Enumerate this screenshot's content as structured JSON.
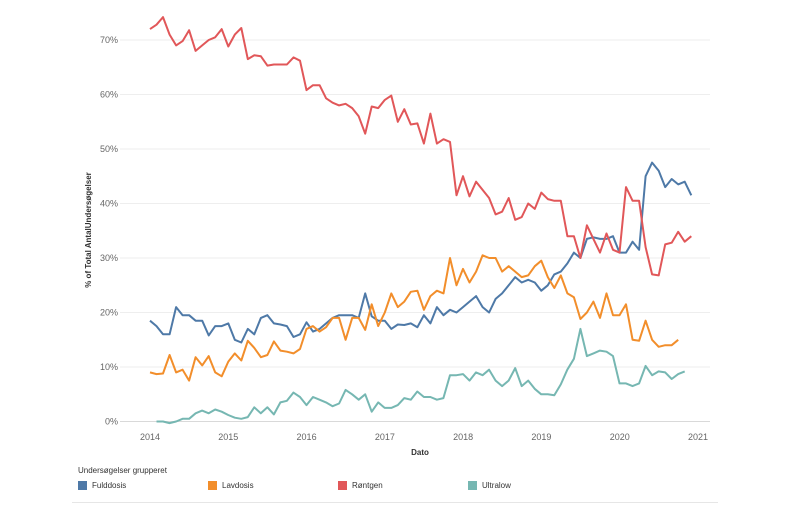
{
  "chart_data": {
    "type": "line",
    "title": "",
    "xlabel": "Dato",
    "ylabel": "% of Total AntalUndersøgelser",
    "xlim": [
      2014,
      2021
    ],
    "ylim": [
      0,
      74
    ],
    "x_ticks": [
      "2014",
      "2015",
      "2016",
      "2017",
      "2018",
      "2019",
      "2020",
      "2021"
    ],
    "y_ticks": [
      "0%",
      "10%",
      "20%",
      "30%",
      "40%",
      "50%",
      "60%",
      "70%"
    ],
    "y_tick_values": [
      0,
      10,
      20,
      30,
      40,
      50,
      60,
      70
    ],
    "grid": "horizontal",
    "legend_title": "Undersøgelser grupperet",
    "legend_position": "bottom",
    "series": [
      {
        "name": "Fulddosis",
        "color": "#4e79a7",
        "start_year": 2014,
        "step": 0.0833,
        "values": [
          18.5,
          17.5,
          16,
          16,
          21,
          19.5,
          19.5,
          18.5,
          18.5,
          15.8,
          17.5,
          17.5,
          18,
          15,
          14.5,
          17,
          16,
          19,
          19.5,
          18,
          17.8,
          17.5,
          15.5,
          16,
          18.2,
          16.5,
          17,
          18,
          19,
          19.5,
          19.5,
          19.5,
          19,
          23.5,
          19.3,
          18.5,
          18.5,
          17,
          17.8,
          17.7,
          18,
          17.3,
          19.5,
          18,
          21,
          19.5,
          20.5,
          20,
          21,
          22,
          23,
          21,
          20,
          22.5,
          23.5,
          25,
          26.5,
          25.5,
          26,
          25.5,
          24,
          25,
          27,
          27.5,
          29,
          31,
          30,
          33.5,
          33.8,
          33.5,
          33.5,
          34,
          31,
          31,
          33,
          31.5,
          45,
          47.5,
          46,
          43,
          44.5,
          43.5,
          44,
          41.5
        ]
      },
      {
        "name": "Lavdosis",
        "color": "#f28e2b",
        "start_year": 2014,
        "step": 0.0833,
        "values": [
          9,
          8.7,
          8.8,
          12.2,
          9,
          9.5,
          7.5,
          11.8,
          10.3,
          12,
          9,
          8.3,
          11,
          12.5,
          11.2,
          14.8,
          13.5,
          11.8,
          12.2,
          14.7,
          13,
          12.8,
          12.5,
          13.3,
          17,
          17.5,
          16.5,
          17.3,
          19,
          19,
          15,
          19,
          19,
          16.8,
          21.5,
          17.5,
          20,
          23.5,
          21,
          22,
          23.8,
          24,
          20.5,
          23,
          24,
          23.5,
          30,
          25,
          28,
          25.5,
          27.5,
          30.5,
          30,
          30,
          27.5,
          28.5,
          27.5,
          26.5,
          26.8,
          28.5,
          29.5,
          26.5,
          24.5,
          26.8,
          23.5,
          22.8,
          18.8,
          20,
          22,
          19,
          23.5,
          19.5,
          19.5,
          21.5,
          15,
          14.8,
          18.5,
          15,
          13.7,
          14,
          14,
          15
        ]
      },
      {
        "name": "Røntgen",
        "color": "#e15759",
        "start_year": 2014,
        "step": 0.0833,
        "values": [
          72,
          72.8,
          74.2,
          71,
          69,
          69.8,
          71.8,
          68,
          69,
          70,
          70.5,
          72,
          68.8,
          71,
          72.2,
          66.5,
          67.2,
          67,
          65.3,
          65.5,
          65.5,
          65.5,
          66.8,
          66.2,
          60.8,
          61.7,
          61.7,
          59.3,
          58.5,
          58,
          58.3,
          57.5,
          56,
          52.8,
          57.8,
          57.5,
          59,
          59.8,
          55,
          57.3,
          54.5,
          54.7,
          51,
          56.5,
          51,
          51.8,
          51.3,
          41.5,
          45,
          41.3,
          44,
          42.5,
          41,
          38,
          38.5,
          41,
          37,
          37.5,
          40,
          39,
          42,
          40.8,
          40.5,
          40.5,
          34,
          34,
          30,
          36,
          33.5,
          31,
          34.5,
          31.5,
          31,
          43,
          40.5,
          40.5,
          32,
          27,
          26.8,
          32.5,
          32.8,
          34.8,
          33,
          34
        ]
      },
      {
        "name": "Ultralow",
        "color": "#76b7b2",
        "start_year": 2014.083,
        "step": 0.0833,
        "values": [
          0,
          0,
          -0.3,
          0,
          0.5,
          0.5,
          1.5,
          2,
          1.5,
          2.2,
          1.8,
          1.2,
          0.7,
          0.5,
          0.8,
          2.6,
          1.5,
          2.6,
          1.3,
          3.5,
          3.8,
          5.3,
          4.5,
          3,
          4.5,
          4,
          3.5,
          2.8,
          3.3,
          5.8,
          5,
          4,
          5,
          1.8,
          3.5,
          2.5,
          2.5,
          3,
          4.3,
          4,
          5.5,
          4.5,
          4.5,
          4,
          4.3,
          8.5,
          8.5,
          8.7,
          7.5,
          9,
          8.5,
          9.5,
          7.5,
          6.5,
          7.5,
          9.8,
          6.5,
          7.5,
          6,
          5,
          5,
          4.8,
          6.8,
          9.5,
          11.5,
          17,
          12,
          12.5,
          13,
          12.8,
          12,
          7,
          7,
          6.5,
          7,
          10.2,
          8.5,
          9.2,
          9,
          7.8,
          8.7,
          9.2
        ]
      }
    ]
  }
}
